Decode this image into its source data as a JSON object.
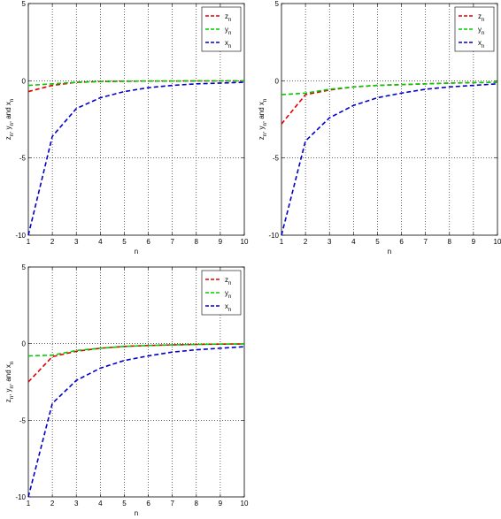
{
  "chart_data": [
    {
      "type": "line",
      "xlabel": "n",
      "ylabel": "z_n, y_n, and x_n",
      "xlim": [
        1,
        10
      ],
      "ylim": [
        -10,
        5
      ],
      "xticks": [
        1,
        2,
        3,
        4,
        5,
        6,
        7,
        8,
        9,
        10
      ],
      "yticks": [
        -10,
        -5,
        0,
        5
      ],
      "grid": true,
      "legend_position": "top-right",
      "x": [
        1,
        2,
        3,
        4,
        5,
        6,
        7,
        8,
        9,
        10
      ],
      "series": [
        {
          "name": "z_n",
          "color": "#e00000",
          "values": [
            -0.7,
            -0.3,
            -0.1,
            -0.05,
            -0.03,
            -0.02,
            -0.02,
            -0.01,
            -0.01,
            -0.01
          ]
        },
        {
          "name": "y_n",
          "color": "#00cc00",
          "values": [
            -0.3,
            -0.2,
            -0.1,
            -0.05,
            -0.03,
            -0.02,
            -0.02,
            -0.01,
            -0.01,
            -0.01
          ]
        },
        {
          "name": "x_n",
          "color": "#0000cc",
          "values": [
            -10,
            -3.6,
            -1.8,
            -1.1,
            -0.7,
            -0.45,
            -0.3,
            -0.2,
            -0.15,
            -0.1
          ]
        }
      ]
    },
    {
      "type": "line",
      "xlabel": "n",
      "ylabel": "z_n, y_n, and x_n",
      "xlim": [
        1,
        10
      ],
      "ylim": [
        -10,
        5
      ],
      "xticks": [
        1,
        2,
        3,
        4,
        5,
        6,
        7,
        8,
        9,
        10
      ],
      "yticks": [
        -10,
        -5,
        0,
        5
      ],
      "grid": true,
      "legend_position": "top-right",
      "x": [
        1,
        2,
        3,
        4,
        5,
        6,
        7,
        8,
        9,
        10
      ],
      "series": [
        {
          "name": "z_n",
          "color": "#e00000",
          "values": [
            -2.8,
            -0.9,
            -0.6,
            -0.4,
            -0.3,
            -0.25,
            -0.2,
            -0.15,
            -0.12,
            -0.1
          ]
        },
        {
          "name": "y_n",
          "color": "#00cc00",
          "values": [
            -0.9,
            -0.8,
            -0.55,
            -0.4,
            -0.3,
            -0.25,
            -0.2,
            -0.15,
            -0.12,
            -0.1
          ]
        },
        {
          "name": "x_n",
          "color": "#0000cc",
          "values": [
            -10,
            -3.9,
            -2.4,
            -1.6,
            -1.1,
            -0.8,
            -0.55,
            -0.4,
            -0.3,
            -0.2
          ]
        }
      ]
    },
    {
      "type": "line",
      "xlabel": "n",
      "ylabel": "z_n, y_n, and x_n",
      "xlim": [
        1,
        10
      ],
      "ylim": [
        -10,
        5
      ],
      "xticks": [
        1,
        2,
        3,
        4,
        5,
        6,
        7,
        8,
        9,
        10
      ],
      "yticks": [
        -10,
        -5,
        0,
        5
      ],
      "grid": true,
      "legend_position": "top-right",
      "x": [
        1,
        2,
        3,
        4,
        5,
        6,
        7,
        8,
        9,
        10
      ],
      "series": [
        {
          "name": "z_n",
          "color": "#e00000",
          "values": [
            -2.5,
            -0.85,
            -0.5,
            -0.3,
            -0.18,
            -0.12,
            -0.08,
            -0.05,
            -0.03,
            -0.02
          ]
        },
        {
          "name": "y_n",
          "color": "#00cc00",
          "values": [
            -0.8,
            -0.75,
            -0.45,
            -0.3,
            -0.18,
            -0.12,
            -0.08,
            -0.05,
            -0.03,
            -0.02
          ]
        },
        {
          "name": "x_n",
          "color": "#0000cc",
          "values": [
            -10,
            -3.9,
            -2.4,
            -1.6,
            -1.1,
            -0.8,
            -0.55,
            -0.4,
            -0.3,
            -0.2
          ]
        }
      ]
    }
  ]
}
